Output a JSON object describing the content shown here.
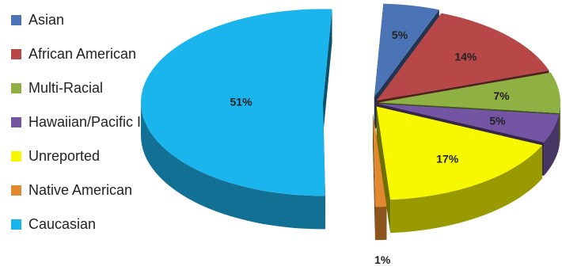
{
  "chart_data": {
    "type": "pie",
    "title": "",
    "legend_position": "left",
    "style": "3d-exploded",
    "slices": [
      {
        "label": "Asian",
        "value": 5,
        "display": "5%",
        "color": "#4a74b5"
      },
      {
        "label": "African American",
        "value": 14,
        "display": "14%",
        "color": "#b84747"
      },
      {
        "label": "Multi-Racial",
        "value": 7,
        "display": "7%",
        "color": "#8fb043"
      },
      {
        "label": "Hawaiian/Pacific Islander",
        "value": 5,
        "display": "5%",
        "color": "#7355a3"
      },
      {
        "label": "Unreported",
        "value": 17,
        "display": "17%",
        "color": "#f7f700"
      },
      {
        "label": "Native American",
        "value": 1,
        "display": "1%",
        "color": "#e0892f"
      },
      {
        "label": "Caucasian",
        "value": 51,
        "display": "51%",
        "color": "#1bb5ee"
      }
    ]
  }
}
